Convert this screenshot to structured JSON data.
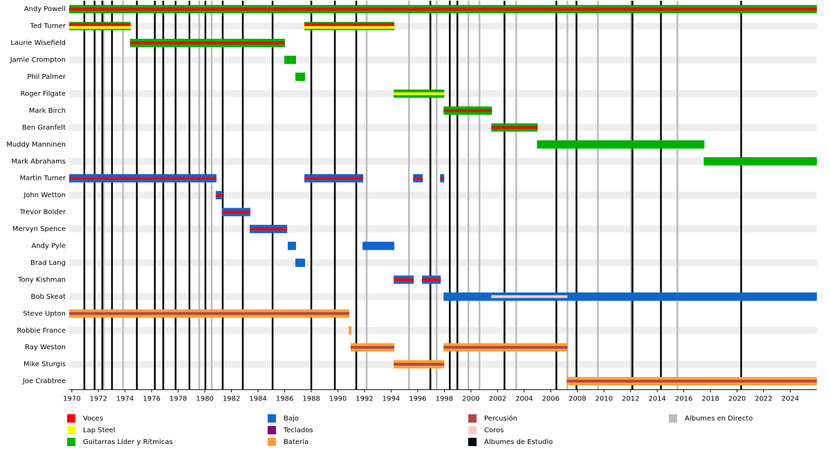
{
  "chart_data": {
    "type": "timeline",
    "xlim": [
      1969.8,
      2026
    ],
    "xticks": [
      1970,
      1972,
      1974,
      1976,
      1978,
      1980,
      1982,
      1984,
      1986,
      1988,
      1990,
      1992,
      1994,
      1996,
      1998,
      2000,
      2002,
      2004,
      2006,
      2008,
      2010,
      2012,
      2014,
      2016,
      2018,
      2020,
      2022,
      2024
    ],
    "roles": [
      {
        "name": "Voces",
        "color": "#ff0000"
      },
      {
        "name": "Lap Steel",
        "color": "#ffff00"
      },
      {
        "name": "Guitarras Líder y Rítmicas",
        "color": "#00b000"
      },
      {
        "name": "Bajo",
        "color": "#1166cc"
      },
      {
        "name": "Teclados",
        "color": "#800080"
      },
      {
        "name": "Batería",
        "color": "#ffa030"
      },
      {
        "name": "Percusión",
        "color": "#b04848"
      },
      {
        "name": "Coros",
        "color": "#ffc8c8"
      },
      {
        "name": "Albumes de Estudio",
        "color": "#000000"
      },
      {
        "name": "Albumes en Directo",
        "color": "#bbbbbb"
      }
    ],
    "albums": [
      {
        "role": 9,
        "years": [
          1972.39,
          1973.85,
          1979.57,
          1980.51,
          1992.16,
          1995.34,
          1997.42,
          1999.81,
          2000.64,
          2003.4,
          2007.25,
          2009.54,
          2012.04,
          2015.52
        ]
      },
      {
        "role": 8,
        "years": [
          1970.94,
          1971.71,
          1972.29,
          1973.02,
          1974.89,
          1976.24,
          1976.87,
          1977.8,
          1978.84,
          1980.04,
          1981.34,
          1982.85,
          1985.09,
          1988.0,
          1989.77,
          1991.38,
          1996.95,
          1998.41,
          1998.98,
          2002.52,
          2006.42,
          2007.93,
          2012.14,
          2014.28,
          2020.31
        ]
      }
    ],
    "members": [
      {
        "name": "Andy Powell",
        "segments": [
          {
            "start": 1969.8,
            "end": 2026,
            "role": 2,
            "stripes": [
              0
            ]
          }
        ]
      },
      {
        "name": "Ted Turner",
        "segments": [
          {
            "start": 1969.8,
            "end": 1974.42,
            "role": 2,
            "stripes": [
              0,
              1
            ]
          },
          {
            "start": 1987.48,
            "end": 1994.24,
            "role": 2,
            "stripes": [
              0,
              1
            ]
          }
        ]
      },
      {
        "name": "Laurie Wisefield",
        "segments": [
          {
            "start": 1974.37,
            "end": 1986.02,
            "role": 2,
            "stripes": [
              0
            ]
          }
        ]
      },
      {
        "name": "Jamie Crompton",
        "segments": [
          {
            "start": 1985.97,
            "end": 1986.85,
            "role": 2
          }
        ]
      },
      {
        "name": "Phil Palmer",
        "segments": [
          {
            "start": 1986.8,
            "end": 1987.53,
            "role": 2
          }
        ]
      },
      {
        "name": "Roger Filgate",
        "segments": [
          {
            "start": 1994.19,
            "end": 1997.99,
            "role": 2,
            "stripes": [
              1
            ]
          }
        ]
      },
      {
        "name": "Mark Birch",
        "segments": [
          {
            "start": 1997.94,
            "end": 2001.58,
            "role": 2,
            "stripes": [
              0
            ]
          }
        ]
      },
      {
        "name": "Ben Granfelt",
        "segments": [
          {
            "start": 2001.53,
            "end": 2005.02,
            "role": 2,
            "stripes": [
              0
            ]
          }
        ]
      },
      {
        "name": "Muddy Manninen",
        "segments": [
          {
            "start": 2004.96,
            "end": 2017.55,
            "role": 2
          }
        ]
      },
      {
        "name": "Mark Abrahams",
        "segments": [
          {
            "start": 2017.5,
            "end": 2026,
            "role": 2
          }
        ]
      },
      {
        "name": "Martin Turner",
        "segments": [
          {
            "start": 1969.8,
            "end": 1980.87,
            "role": 3,
            "stripes": [
              0
            ]
          },
          {
            "start": 1987.48,
            "end": 1991.9,
            "role": 3,
            "stripes": [
              0
            ]
          },
          {
            "start": 1995.65,
            "end": 1996.38,
            "role": 3,
            "stripes": [
              0
            ]
          },
          {
            "start": 1997.68,
            "end": 1997.99,
            "role": 3,
            "stripes": [
              0
            ]
          }
        ]
      },
      {
        "name": "John Wetton",
        "segments": [
          {
            "start": 1980.82,
            "end": 1981.34,
            "role": 3,
            "stripes": [
              0
            ]
          }
        ]
      },
      {
        "name": "Trevor Bolder",
        "segments": [
          {
            "start": 1981.29,
            "end": 1983.42,
            "role": 3,
            "stripes": [
              0
            ]
          }
        ]
      },
      {
        "name": "Mervyn Spence",
        "segments": [
          {
            "start": 1983.37,
            "end": 1986.18,
            "role": 3,
            "stripes": [
              0
            ]
          }
        ]
      },
      {
        "name": "Andy Pyle",
        "segments": [
          {
            "start": 1986.23,
            "end": 1986.85,
            "role": 3
          },
          {
            "start": 1991.85,
            "end": 1994.24,
            "role": 3
          }
        ]
      },
      {
        "name": "Brad Lang",
        "segments": [
          {
            "start": 1986.8,
            "end": 1987.53,
            "role": 3
          }
        ]
      },
      {
        "name": "Tony Kishman",
        "segments": [
          {
            "start": 1994.19,
            "end": 1995.7,
            "role": 3,
            "stripes": [
              0
            ]
          },
          {
            "start": 1996.32,
            "end": 1997.73,
            "role": 3,
            "stripes": [
              0
            ]
          }
        ]
      },
      {
        "name": "Bob Skeat",
        "segments": [
          {
            "start": 1997.94,
            "end": 2001.53,
            "role": 3
          },
          {
            "start": 2001.53,
            "end": 2007.25,
            "role": 3,
            "stripes": [
              7
            ]
          },
          {
            "start": 2007.25,
            "end": 2026,
            "role": 3
          }
        ]
      },
      {
        "name": "Steve Upton",
        "segments": [
          {
            "start": 1969.8,
            "end": 1990.86,
            "role": 5,
            "stripes": [
              6
            ]
          }
        ]
      },
      {
        "name": "Robbie France",
        "segments": [
          {
            "start": 1990.81,
            "end": 1991.02,
            "role": 5
          }
        ]
      },
      {
        "name": "Ray Weston",
        "segments": [
          {
            "start": 1990.96,
            "end": 1994.24,
            "role": 5,
            "stripes": [
              6
            ]
          },
          {
            "start": 1997.94,
            "end": 2007.25,
            "role": 5,
            "stripes": [
              6
            ]
          }
        ]
      },
      {
        "name": "Mike Sturgis",
        "segments": [
          {
            "start": 1994.19,
            "end": 1997.99,
            "role": 5,
            "stripes": [
              6
            ]
          }
        ]
      },
      {
        "name": "Joe Crabtree",
        "segments": [
          {
            "start": 2007.2,
            "end": 2026,
            "role": 5,
            "stripes": [
              6
            ]
          }
        ]
      }
    ]
  }
}
